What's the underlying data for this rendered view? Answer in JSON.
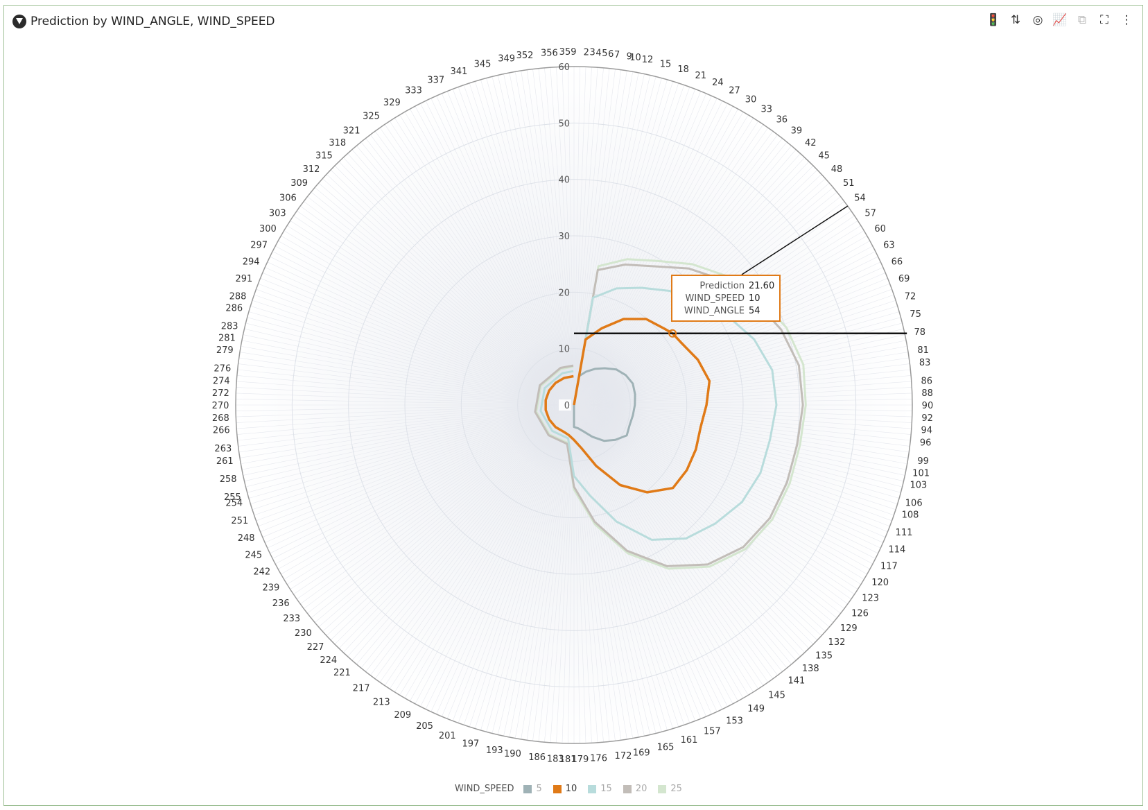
{
  "header": {
    "title": "Prediction by WIND_ANGLE, WIND_SPEED"
  },
  "toolbar": [
    {
      "icon": "traffic-light-icon",
      "glyph": "🚦",
      "enabled": true
    },
    {
      "icon": "sort-icon",
      "glyph": "⇅",
      "enabled": true
    },
    {
      "icon": "target-icon",
      "glyph": "◎",
      "enabled": true
    },
    {
      "icon": "chart-settings-icon",
      "glyph": "📈",
      "enabled": true
    },
    {
      "icon": "duplicate-icon",
      "glyph": "⧉",
      "enabled": false
    },
    {
      "icon": "fullscreen-icon",
      "glyph": "⛶",
      "enabled": true
    },
    {
      "icon": "more-icon",
      "glyph": "⋮",
      "enabled": true
    }
  ],
  "tooltip": {
    "rows": [
      {
        "key": "Prediction",
        "value": "21.60"
      },
      {
        "key": "WIND_SPEED",
        "value": "10"
      },
      {
        "key": "WIND_ANGLE",
        "value": "54"
      }
    ]
  },
  "legend": {
    "title": "WIND_SPEED",
    "items": [
      {
        "label": "5",
        "color": "#9fb2b6"
      },
      {
        "label": "10",
        "color": "#e07a17"
      },
      {
        "label": "15",
        "color": "#b8dcdc"
      },
      {
        "label": "20",
        "color": "#c2bdb8"
      },
      {
        "label": "25",
        "color": "#d4e6cf"
      }
    ]
  },
  "chart_data": {
    "type": "polar-line",
    "title": "Prediction by WIND_ANGLE, WIND_SPEED",
    "angle_field": "WIND_ANGLE",
    "value_field": "Prediction",
    "series_field": "WIND_SPEED",
    "rlim": [
      0,
      60
    ],
    "r_ticks": [
      "0",
      "10",
      "20",
      "30",
      "40",
      "50",
      "60"
    ],
    "angle_ticks": [
      "2",
      "3",
      "4",
      "5",
      "6",
      "7",
      "9",
      "10",
      "12",
      "15",
      "18",
      "21",
      "24",
      "27",
      "30",
      "33",
      "36",
      "39",
      "42",
      "45",
      "48",
      "51",
      "54",
      "57",
      "60",
      "63",
      "66",
      "69",
      "72",
      "75",
      "78",
      "81",
      "83",
      "86",
      "88",
      "90",
      "92",
      "94",
      "96",
      "99",
      "101",
      "103",
      "106",
      "108",
      "111",
      "114",
      "117",
      "120",
      "123",
      "126",
      "129",
      "132",
      "135",
      "138",
      "141",
      "145",
      "149",
      "153",
      "157",
      "161",
      "165",
      "169",
      "172",
      "176",
      "179",
      "181",
      "183",
      "186",
      "190",
      "193",
      "197",
      "201",
      "205",
      "209",
      "213",
      "217",
      "221",
      "224",
      "227",
      "230",
      "233",
      "236",
      "239",
      "242",
      "245",
      "248",
      "251",
      "254",
      "255",
      "258",
      "261",
      "263",
      "266",
      "268",
      "270",
      "272",
      "274",
      "276",
      "279",
      "281",
      "283",
      "286",
      "288",
      "291",
      "294",
      "297",
      "300",
      "303",
      "306",
      "309",
      "312",
      "315",
      "318",
      "321",
      "325",
      "329",
      "333",
      "337",
      "341",
      "345",
      "349",
      "352",
      "356",
      "359"
    ],
    "highlight": {
      "wind_angle": 54,
      "wind_speed": 10,
      "prediction": 21.6
    },
    "series": [
      {
        "name": "5",
        "color": "#9fb2b6",
        "points": [
          [
            0,
            0
          ],
          [
            10,
            5.2
          ],
          [
            20,
            6.3
          ],
          [
            30,
            7.4
          ],
          [
            40,
            8.5
          ],
          [
            50,
            9.8
          ],
          [
            60,
            10.6
          ],
          [
            70,
            11.1
          ],
          [
            80,
            11.0
          ],
          [
            90,
            10.8
          ],
          [
            100,
            10.6
          ],
          [
            110,
            10.5
          ],
          [
            120,
            10.8
          ],
          [
            130,
            9.6
          ],
          [
            140,
            8.3
          ],
          [
            150,
            6.5
          ],
          [
            160,
            5.0
          ],
          [
            170,
            4.2
          ],
          [
            180,
            3.9
          ],
          [
            190,
            0
          ],
          [
            359,
            0
          ]
        ]
      },
      {
        "name": "10",
        "color": "#e07a17",
        "points": [
          [
            0,
            0
          ],
          [
            10,
            11.8
          ],
          [
            20,
            14.5
          ],
          [
            30,
            17.6
          ],
          [
            40,
            19.9
          ],
          [
            50,
            21.0
          ],
          [
            54,
            21.6
          ],
          [
            60,
            22.0
          ],
          [
            70,
            23.4
          ],
          [
            80,
            24.4
          ],
          [
            90,
            23.5
          ],
          [
            100,
            22.8
          ],
          [
            110,
            23.0
          ],
          [
            120,
            23.1
          ],
          [
            130,
            22.9
          ],
          [
            140,
            20.2
          ],
          [
            150,
            16.4
          ],
          [
            160,
            11.5
          ],
          [
            170,
            7.8
          ],
          [
            180,
            6.2
          ],
          [
            190,
            5.4
          ],
          [
            200,
            5.1
          ],
          [
            220,
            5.1
          ],
          [
            240,
            5.1
          ],
          [
            260,
            5.1
          ],
          [
            280,
            5.1
          ],
          [
            300,
            5.1
          ],
          [
            320,
            5.1
          ],
          [
            340,
            5.1
          ],
          [
            359,
            5.1
          ]
        ]
      },
      {
        "name": "15",
        "color": "#b8dcdc",
        "points": [
          [
            0,
            0
          ],
          [
            10,
            19.3
          ],
          [
            20,
            22.0
          ],
          [
            30,
            24.0
          ],
          [
            40,
            26.4
          ],
          [
            50,
            28.5
          ],
          [
            60,
            31.5
          ],
          [
            70,
            34.0
          ],
          [
            80,
            35.7
          ],
          [
            90,
            35.9
          ],
          [
            100,
            35.3
          ],
          [
            110,
            35.2
          ],
          [
            120,
            34.4
          ],
          [
            130,
            32.7
          ],
          [
            140,
            30.9
          ],
          [
            150,
            27.6
          ],
          [
            160,
            22.0
          ],
          [
            170,
            16.3
          ],
          [
            180,
            12.6
          ],
          [
            190,
            6.0
          ],
          [
            220,
            6.0
          ],
          [
            260,
            6.0
          ],
          [
            300,
            6.0
          ],
          [
            340,
            6.0
          ],
          [
            359,
            6.0
          ]
        ]
      },
      {
        "name": "20",
        "color": "#c2bdb8",
        "points": [
          [
            0,
            0
          ],
          [
            10,
            24.3
          ],
          [
            20,
            26.5
          ],
          [
            30,
            28.4
          ],
          [
            40,
            31.6
          ],
          [
            50,
            34.5
          ],
          [
            60,
            37.0
          ],
          [
            70,
            39.1
          ],
          [
            80,
            40.5
          ],
          [
            90,
            40.6
          ],
          [
            100,
            40.2
          ],
          [
            110,
            40.2
          ],
          [
            120,
            40.1
          ],
          [
            130,
            39.2
          ],
          [
            140,
            36.9
          ],
          [
            150,
            33.0
          ],
          [
            160,
            27.5
          ],
          [
            170,
            21.0
          ],
          [
            180,
            14.5
          ],
          [
            190,
            7.0
          ],
          [
            220,
            7.0
          ],
          [
            260,
            7.0
          ],
          [
            300,
            7.0
          ],
          [
            340,
            7.0
          ],
          [
            359,
            7.0
          ]
        ]
      },
      {
        "name": "25",
        "color": "#d4e6cf",
        "points": [
          [
            0,
            0
          ],
          [
            10,
            25.0
          ],
          [
            20,
            27.5
          ],
          [
            30,
            29.5
          ],
          [
            40,
            32.6
          ],
          [
            50,
            35.5
          ],
          [
            60,
            37.9
          ],
          [
            70,
            40.1
          ],
          [
            80,
            41.3
          ],
          [
            90,
            41.1
          ],
          [
            100,
            40.7
          ],
          [
            110,
            40.7
          ],
          [
            120,
            40.6
          ],
          [
            130,
            39.7
          ],
          [
            140,
            37.4
          ],
          [
            150,
            33.5
          ],
          [
            160,
            28.0
          ],
          [
            170,
            21.5
          ],
          [
            180,
            15.0
          ],
          [
            190,
            6.8
          ],
          [
            220,
            6.8
          ],
          [
            260,
            6.8
          ],
          [
            300,
            6.8
          ],
          [
            340,
            6.8
          ],
          [
            359,
            6.8
          ]
        ]
      }
    ]
  }
}
